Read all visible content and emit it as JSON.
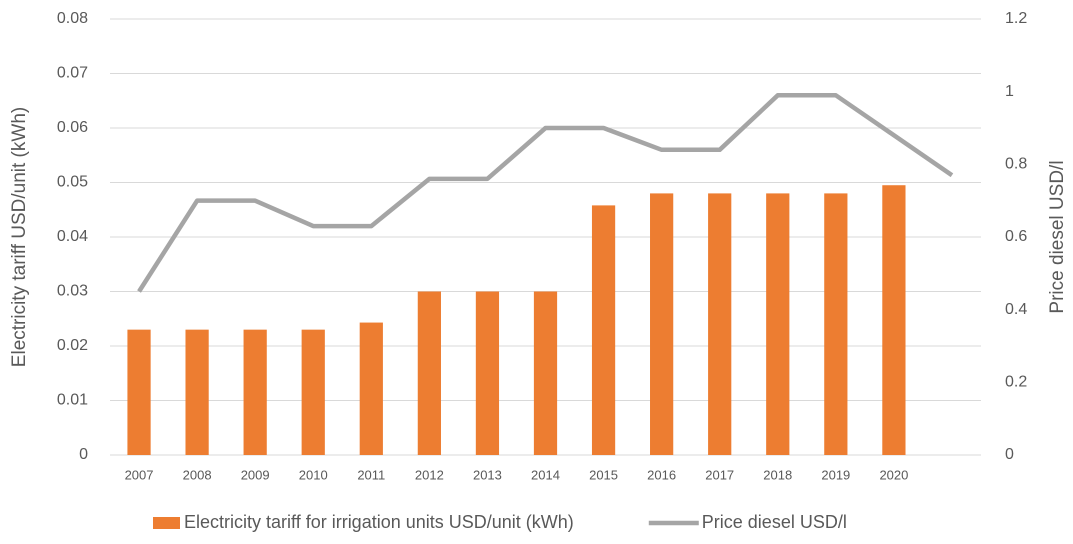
{
  "chart_data": {
    "type": "bar_line",
    "categories": [
      "2007",
      "2008",
      "2009",
      "2010",
      "2011",
      "2012",
      "2013",
      "2014",
      "2015",
      "2016",
      "2017",
      "2018",
      "2019",
      "2020",
      null
    ],
    "series": [
      {
        "name": "Electricity tariff for irrigation units USD/unit (kWh)",
        "type": "bar",
        "color": "#ed7d31",
        "values": [
          0.023,
          0.023,
          0.023,
          0.023,
          0.0243,
          0.03,
          0.03,
          0.03,
          0.0458,
          0.048,
          0.048,
          0.048,
          0.048,
          0.0495,
          null
        ]
      },
      {
        "name": "Price diesel USD/l",
        "type": "line",
        "axis": "y2",
        "color": "#a5a5a5",
        "values": [
          0.45,
          0.7,
          0.7,
          0.63,
          0.63,
          0.76,
          0.76,
          0.9,
          0.9,
          0.84,
          0.84,
          0.99,
          0.99,
          0.88,
          0.77
        ]
      }
    ],
    "y_label": "Electricity tariff USD/unit (kWh)",
    "y2_label": "Price diesel USD/l",
    "ylim": [
      0,
      0.08
    ],
    "yticks": [
      0,
      0.01,
      0.02,
      0.03,
      0.04,
      0.05,
      0.06,
      0.07,
      0.08
    ],
    "y2lim": [
      0,
      1.2
    ],
    "y2ticks": [
      0,
      0.2,
      0.4,
      0.6,
      0.8,
      1,
      1.2
    ],
    "grid": true,
    "legend": "bottom"
  }
}
